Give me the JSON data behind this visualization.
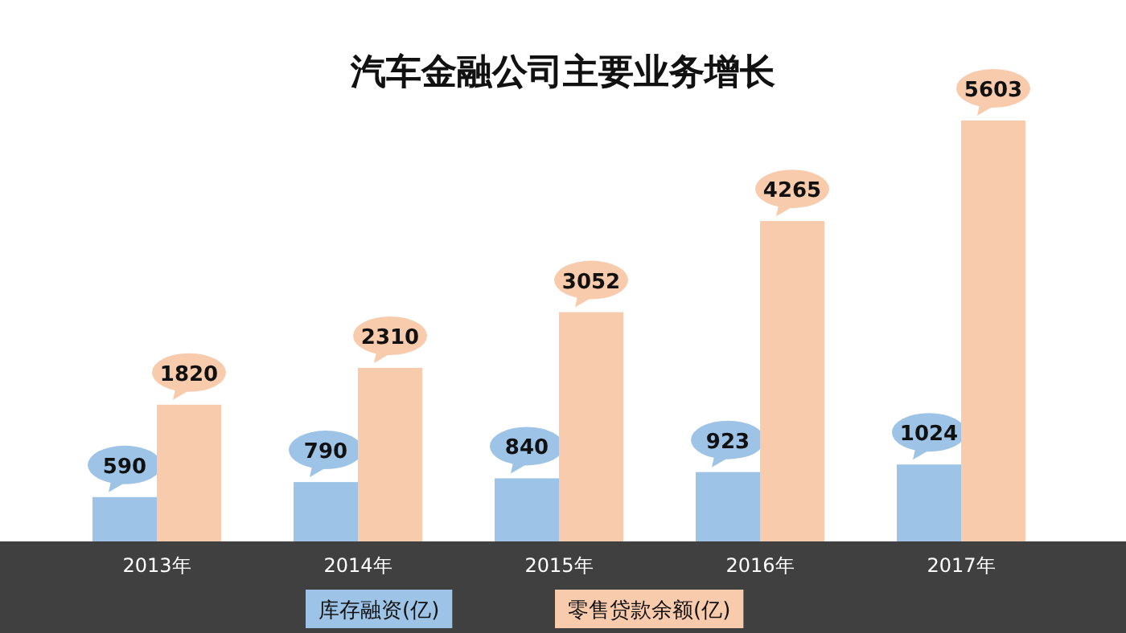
{
  "chart_data": {
    "type": "bar",
    "title": "汽车金融公司主要业务增长",
    "categories": [
      "2013年",
      "2014年",
      "2015年",
      "2016年",
      "2017年"
    ],
    "series": [
      {
        "name": "库存融资(亿)",
        "color": "#9dc3e6",
        "values": [
          590,
          790,
          840,
          923,
          1024
        ]
      },
      {
        "name": "零售贷款余额(亿)",
        "color": "#f8cbad",
        "values": [
          1820,
          2310,
          3052,
          4265,
          5603
        ]
      }
    ],
    "data_labels": true,
    "legend": "bottom"
  }
}
